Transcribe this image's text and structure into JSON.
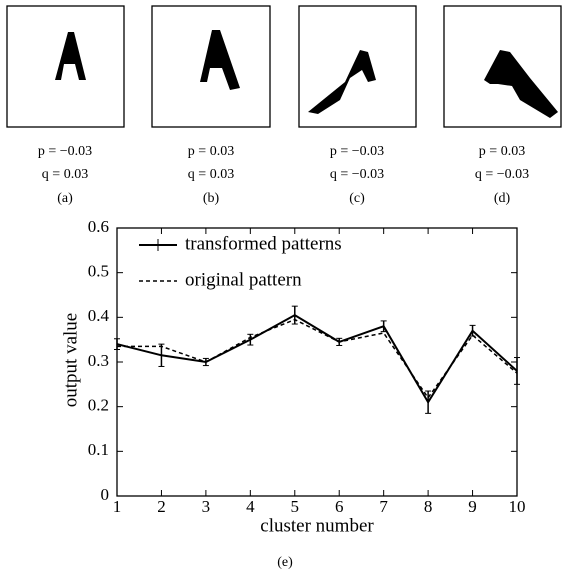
{
  "panels": [
    {
      "p": "p = −0.03",
      "q": "q = 0.03",
      "label": "(a)"
    },
    {
      "p": "p = 0.03",
      "q": "q = 0.03",
      "label": "(b)"
    },
    {
      "p": "p = −0.03",
      "q": "q = −0.03",
      "label": "(c)"
    },
    {
      "p": "p = 0.03",
      "q": "q = −0.03",
      "label": "(d)"
    }
  ],
  "caption": "(e)",
  "chart_data": {
    "type": "line",
    "xlabel": "cluster number",
    "ylabel": "output value",
    "x": [
      1,
      2,
      3,
      4,
      5,
      6,
      7,
      8,
      9,
      10
    ],
    "xlim": [
      1,
      10
    ],
    "xticks": [
      1,
      2,
      3,
      4,
      5,
      6,
      7,
      8,
      9,
      10
    ],
    "ylim": [
      0,
      0.6
    ],
    "yticks": [
      0,
      0.1,
      0.2,
      0.3,
      0.4,
      0.5,
      0.6
    ],
    "legend": "upper left",
    "series": [
      {
        "name": "transformed patterns",
        "color": "#000000",
        "style": "solid",
        "values": [
          0.34,
          0.315,
          0.3,
          0.35,
          0.405,
          0.345,
          0.38,
          0.21,
          0.37,
          0.28
        ],
        "errors": [
          0.012,
          0.025,
          0.008,
          0.012,
          0.02,
          0.008,
          0.012,
          0.025,
          0.012,
          0.03
        ]
      },
      {
        "name": "original pattern",
        "color": "#000000",
        "style": "dashed",
        "values": [
          0.335,
          0.335,
          0.3,
          0.355,
          0.395,
          0.345,
          0.365,
          0.22,
          0.36,
          0.275
        ]
      }
    ]
  }
}
